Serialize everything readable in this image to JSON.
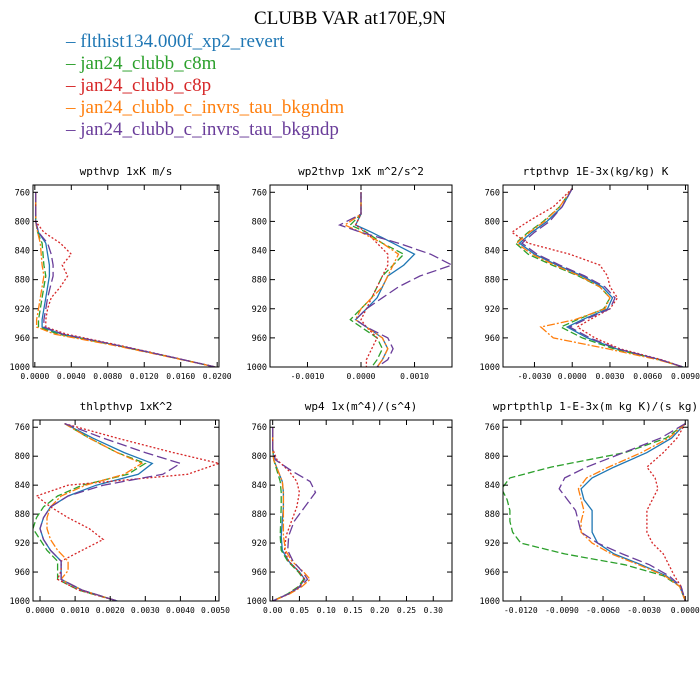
{
  "title": "CLUBB VAR at170E,9N",
  "colors": [
    "#1f77b4",
    "#2ca02c",
    "#d62728",
    "#ff7f0e",
    "#6a3d9a"
  ],
  "legend": [
    {
      "name": "flthist134.000f_xp2_revert",
      "color": "#1f77b4",
      "dash": "solid"
    },
    {
      "name": "jan24_clubb_c8m",
      "color": "#2ca02c",
      "dash": "dashed"
    },
    {
      "name": "jan24_clubb_c8p",
      "color": "#d62728",
      "dash": "dotted"
    },
    {
      "name": "jan24_clubb_c_invrs_tau_bkgndm",
      "color": "#ff7f0e",
      "dash": "dash-dot"
    },
    {
      "name": "jan24_clubb_c_invrs_tau_bkgndp",
      "color": "#6a3d9a",
      "dash": "long-dash"
    }
  ],
  "chart_data": [
    {
      "type": "line",
      "title": "wpthvp  1xK m/s",
      "xlim": [
        -0.0002,
        0.0202
      ],
      "ylim": [
        1000,
        750
      ],
      "xticks": [
        "0.0000",
        "0.0040",
        "0.0080",
        "0.0120",
        "0.0160",
        "0.0200"
      ],
      "xtick_values": [
        0,
        0.004,
        0.008,
        0.012,
        0.016,
        0.02
      ],
      "yticks": [
        760,
        800,
        840,
        880,
        920,
        960,
        1000
      ],
      "p": [
        760,
        780,
        800,
        815,
        830,
        845,
        860,
        875,
        890,
        905,
        920,
        935,
        945,
        955,
        970,
        985,
        1000
      ],
      "series": [
        {
          "values": [
            0.0001,
            0.0001,
            0.0001,
            0.0004,
            0.0012,
            0.0014,
            0.0016,
            0.0016,
            0.0014,
            0.0012,
            0.001,
            0.0008,
            0.0008,
            0.003,
            0.009,
            0.0145,
            0.0198
          ]
        },
        {
          "values": [
            0.0001,
            0.0001,
            0.0001,
            0.0003,
            0.0008,
            0.0009,
            0.001,
            0.0012,
            0.001,
            0.0008,
            0.0006,
            0.0004,
            0.0004,
            0.0026,
            0.0088,
            0.0144,
            0.0198
          ]
        },
        {
          "values": [
            0.0001,
            0.0001,
            0.0001,
            0.001,
            0.0028,
            0.004,
            0.003,
            0.0036,
            0.0028,
            0.0018,
            0.0014,
            0.0012,
            0.0012,
            0.0035,
            0.0092,
            0.0146,
            0.0198
          ]
        },
        {
          "values": [
            0.0001,
            0.0001,
            0.0001,
            0.0003,
            0.0006,
            0.0007,
            0.0008,
            0.001,
            0.0008,
            0.0006,
            0.0004,
            0.0002,
            0.0002,
            0.0022,
            0.0086,
            0.0143,
            0.0198
          ]
        },
        {
          "values": [
            0.0001,
            0.0001,
            0.0001,
            0.0004,
            0.0014,
            0.0018,
            0.002,
            0.002,
            0.0017,
            0.0014,
            0.0012,
            0.001,
            0.001,
            0.0031,
            0.009,
            0.0145,
            0.0198
          ]
        }
      ]
    },
    {
      "type": "line",
      "title": "wp2thvp  1xK m^2/s^2",
      "xlim": [
        -0.0017,
        0.0017
      ],
      "ylim": [
        1000,
        750
      ],
      "xticks": [
        "-0.0010",
        "0.0000",
        "0.0010"
      ],
      "xtick_values": [
        -0.001,
        0,
        0.001
      ],
      "yticks": [
        760,
        800,
        840,
        880,
        920,
        960,
        1000
      ],
      "p": [
        760,
        790,
        805,
        815,
        830,
        845,
        860,
        875,
        890,
        905,
        920,
        935,
        945,
        960,
        975,
        990,
        1000
      ],
      "series": [
        {
          "values": [
            0,
            0,
            -0.0001,
            0.0002,
            0.0006,
            0.001,
            0.0008,
            0.0005,
            0.0004,
            0.0003,
            0.0001,
            -0.0001,
            0.0001,
            0.0004,
            0.0005,
            0.0004,
            0.0003
          ]
        },
        {
          "values": [
            0,
            0,
            -0.0002,
            0.0001,
            0.0004,
            0.0008,
            0.0006,
            0.0004,
            0.0003,
            0.0002,
            0,
            -0.0002,
            0,
            0.0003,
            0.0004,
            0.0003,
            0.0002
          ]
        },
        {
          "values": [
            0,
            0,
            -0.0001,
            0.0001,
            0.0003,
            0.0005,
            0.0005,
            0.0004,
            0.0003,
            0.0002,
            0.0001,
            0,
            0.0001,
            0.0003,
            0.0002,
            0.0001,
            0.0001
          ]
        },
        {
          "values": [
            0,
            0,
            -0.0003,
            0,
            0.0004,
            0.0007,
            0.0006,
            0.0005,
            0.0004,
            0.0002,
            0,
            -0.0001,
            0.0001,
            0.0004,
            0.0005,
            0.0004,
            0.0003
          ]
        },
        {
          "values": [
            0,
            0,
            -0.0004,
            0,
            0.0007,
            0.0013,
            0.0017,
            0.0011,
            0.0007,
            0.0004,
            0.0001,
            -0.0001,
            0.0001,
            0.0005,
            0.0006,
            0.0005,
            0.0003
          ]
        }
      ]
    },
    {
      "type": "line",
      "title": "rtpthvp  1E-3x(kg/kg) K",
      "xlim": [
        -0.0055,
        0.0092
      ],
      "ylim": [
        1000,
        750
      ],
      "xticks": [
        "-0.0030",
        "0.0000",
        "0.0030",
        "0.0060",
        "0.0090"
      ],
      "xtick_values": [
        -0.003,
        0,
        0.003,
        0.006,
        0.009
      ],
      "yticks": [
        760,
        800,
        840,
        880,
        920,
        960,
        1000
      ],
      "p": [
        755,
        780,
        800,
        815,
        830,
        845,
        860,
        875,
        890,
        905,
        920,
        935,
        945,
        960,
        975,
        990,
        1000
      ],
      "series": [
        {
          "values": [
            0,
            -0.0008,
            -0.002,
            -0.0032,
            -0.0042,
            -0.003,
            -0.0012,
            0.0008,
            0.0024,
            0.0032,
            0.0028,
            0.0008,
            -0.0004,
            0.0012,
            0.0035,
            0.007,
            0.0088
          ]
        },
        {
          "values": [
            0,
            -0.001,
            -0.0023,
            -0.0035,
            -0.0045,
            -0.0035,
            -0.0016,
            0.0005,
            0.0022,
            0.003,
            0.0025,
            0.0004,
            -0.0009,
            0.0008,
            0.0033,
            0.0069,
            0.0088
          ]
        },
        {
          "values": [
            0,
            -0.0015,
            -0.0035,
            -0.0048,
            -0.0035,
            -0.0002,
            0.0022,
            0.0028,
            0.003,
            0.0036,
            0.003,
            0.0014,
            0.0004,
            0.0018,
            0.0038,
            0.0071,
            0.0088
          ]
        },
        {
          "values": [
            0,
            -0.001,
            -0.0022,
            -0.0034,
            -0.0044,
            -0.0032,
            -0.0014,
            0.0006,
            0.0022,
            0.003,
            0.0026,
            0.0002,
            -0.0025,
            -0.0015,
            0.0028,
            0.0068,
            0.0088
          ]
        },
        {
          "values": [
            0,
            -0.0008,
            -0.0018,
            -0.003,
            -0.004,
            -0.0028,
            -0.001,
            0.001,
            0.0026,
            0.0034,
            0.003,
            0.001,
            -0.0002,
            0.0014,
            0.0036,
            0.007,
            0.0088
          ]
        }
      ]
    },
    {
      "type": "line",
      "title": "thlpthvp  1xK^2",
      "xlim": [
        -0.0002,
        0.0051
      ],
      "ylim": [
        1000,
        750
      ],
      "xticks": [
        "0.0000",
        "0.0010",
        "0.0020",
        "0.0030",
        "0.0040",
        "0.0050"
      ],
      "xtick_values": [
        0,
        0.001,
        0.002,
        0.003,
        0.004,
        0.005
      ],
      "yticks": [
        760,
        800,
        840,
        880,
        920,
        960,
        1000
      ],
      "p": [
        755,
        775,
        795,
        810,
        825,
        840,
        855,
        870,
        885,
        900,
        915,
        930,
        945,
        958,
        970,
        985,
        1000
      ],
      "series": [
        {
          "values": [
            0.0007,
            0.0015,
            0.0024,
            0.0032,
            0.0028,
            0.0016,
            0.0008,
            0.0003,
            0.0001,
            0,
            0.0001,
            0.0003,
            0.0006,
            0.0006,
            0.0006,
            0.0012,
            0.0022
          ]
        },
        {
          "values": [
            0.0007,
            0.0014,
            0.0022,
            0.003,
            0.0025,
            0.0012,
            0.0005,
            0.0001,
            -0.0001,
            -0.0002,
            0,
            0.0002,
            0.0005,
            0.0005,
            0.0005,
            0.0011,
            0.0022
          ]
        },
        {
          "values": [
            0.0007,
            0.0022,
            0.0038,
            0.0051,
            0.0042,
            0.0008,
            -0.0001,
            0.0003,
            0.0008,
            0.0014,
            0.0018,
            0.0012,
            0.0006,
            0.0006,
            0.0005,
            0.0011,
            0.0022
          ]
        },
        {
          "values": [
            0.0007,
            0.0014,
            0.0022,
            0.0029,
            0.0024,
            0.0013,
            0.0006,
            0.0003,
            0.0002,
            0.0002,
            0.0003,
            0.0005,
            0.0008,
            0.0008,
            0.0006,
            0.0012,
            0.0022
          ]
        },
        {
          "values": [
            0.0007,
            0.0018,
            0.003,
            0.004,
            0.0035,
            0.0018,
            0.0008,
            0.0003,
            0.0001,
            0,
            0.0001,
            0.0003,
            0.0006,
            0.0006,
            0.0006,
            0.0012,
            0.0022
          ]
        }
      ]
    },
    {
      "type": "line",
      "title": "wp4  1x(m^4)/(s^4)",
      "xlim": [
        -0.005,
        0.335
      ],
      "ylim": [
        1000,
        750
      ],
      "xticks": [
        "0.00",
        "0.05",
        "0.10",
        "0.15",
        "0.20",
        "0.25",
        "0.30"
      ],
      "xtick_values": [
        0,
        0.05,
        0.1,
        0.15,
        0.2,
        0.25,
        0.3
      ],
      "yticks": [
        760,
        800,
        840,
        880,
        920,
        960,
        1000
      ],
      "p": [
        760,
        790,
        805,
        820,
        835,
        850,
        870,
        890,
        910,
        930,
        945,
        960,
        970,
        980,
        990,
        1000
      ],
      "series": [
        {
          "values": [
            0,
            0,
            0.002,
            0.01,
            0.018,
            0.02,
            0.02,
            0.018,
            0.016,
            0.018,
            0.03,
            0.05,
            0.06,
            0.05,
            0.03,
            0
          ]
        },
        {
          "values": [
            0,
            0,
            0.002,
            0.008,
            0.014,
            0.016,
            0.016,
            0.015,
            0.014,
            0.016,
            0.028,
            0.048,
            0.058,
            0.048,
            0.028,
            0
          ]
        },
        {
          "values": [
            0,
            0,
            0.008,
            0.03,
            0.045,
            0.05,
            0.045,
            0.035,
            0.025,
            0.022,
            0.03,
            0.05,
            0.06,
            0.05,
            0.03,
            0
          ]
        },
        {
          "values": [
            0,
            0,
            0.002,
            0.01,
            0.018,
            0.02,
            0.02,
            0.02,
            0.02,
            0.024,
            0.036,
            0.058,
            0.07,
            0.055,
            0.032,
            0
          ]
        },
        {
          "values": [
            0,
            0,
            0.005,
            0.035,
            0.07,
            0.08,
            0.06,
            0.04,
            0.03,
            0.028,
            0.038,
            0.056,
            0.065,
            0.052,
            0.03,
            0
          ]
        }
      ]
    },
    {
      "type": "line",
      "title": "wprtpthlp  1-E-3x(m kg K)/(s kg)",
      "xlim": [
        -0.0133,
        0.0002
      ],
      "ylim": [
        1000,
        750
      ],
      "xticks": [
        "-0.0120",
        "-0.0090",
        "-0.0060",
        "-0.0030",
        "0.0000"
      ],
      "xtick_values": [
        -0.012,
        -0.009,
        -0.006,
        -0.003,
        0
      ],
      "yticks": [
        760,
        800,
        840,
        880,
        920,
        960,
        1000
      ],
      "p": [
        755,
        775,
        795,
        815,
        830,
        845,
        860,
        875,
        890,
        905,
        920,
        935,
        950,
        965,
        980,
        1000
      ],
      "series": [
        {
          "values": [
            0,
            -0.001,
            -0.0028,
            -0.0052,
            -0.0068,
            -0.0076,
            -0.0074,
            -0.0068,
            -0.0068,
            -0.0068,
            -0.0064,
            -0.0052,
            -0.0032,
            -0.0014,
            -0.0004,
            0
          ]
        },
        {
          "values": [
            0,
            -0.0014,
            -0.0044,
            -0.0098,
            -0.0128,
            -0.0134,
            -0.013,
            -0.0128,
            -0.0128,
            -0.0126,
            -0.012,
            -0.0088,
            -0.0044,
            -0.0016,
            -0.0004,
            0
          ]
        },
        {
          "values": [
            0,
            -0.0006,
            -0.0016,
            -0.0028,
            -0.0022,
            -0.002,
            -0.0024,
            -0.0028,
            -0.0028,
            -0.0028,
            -0.0024,
            -0.0016,
            -0.0012,
            -0.0008,
            -0.0003,
            0
          ]
        },
        {
          "values": [
            0,
            -0.0012,
            -0.0032,
            -0.0056,
            -0.0072,
            -0.0078,
            -0.0076,
            -0.0074,
            -0.0076,
            -0.0076,
            -0.0068,
            -0.0054,
            -0.0034,
            -0.0015,
            -0.0004,
            0
          ]
        },
        {
          "values": [
            0,
            -0.0018,
            -0.0045,
            -0.0072,
            -0.0088,
            -0.0092,
            -0.0086,
            -0.008,
            -0.0078,
            -0.0076,
            -0.0064,
            -0.0046,
            -0.0026,
            -0.0012,
            -0.0003,
            0
          ]
        }
      ]
    }
  ]
}
